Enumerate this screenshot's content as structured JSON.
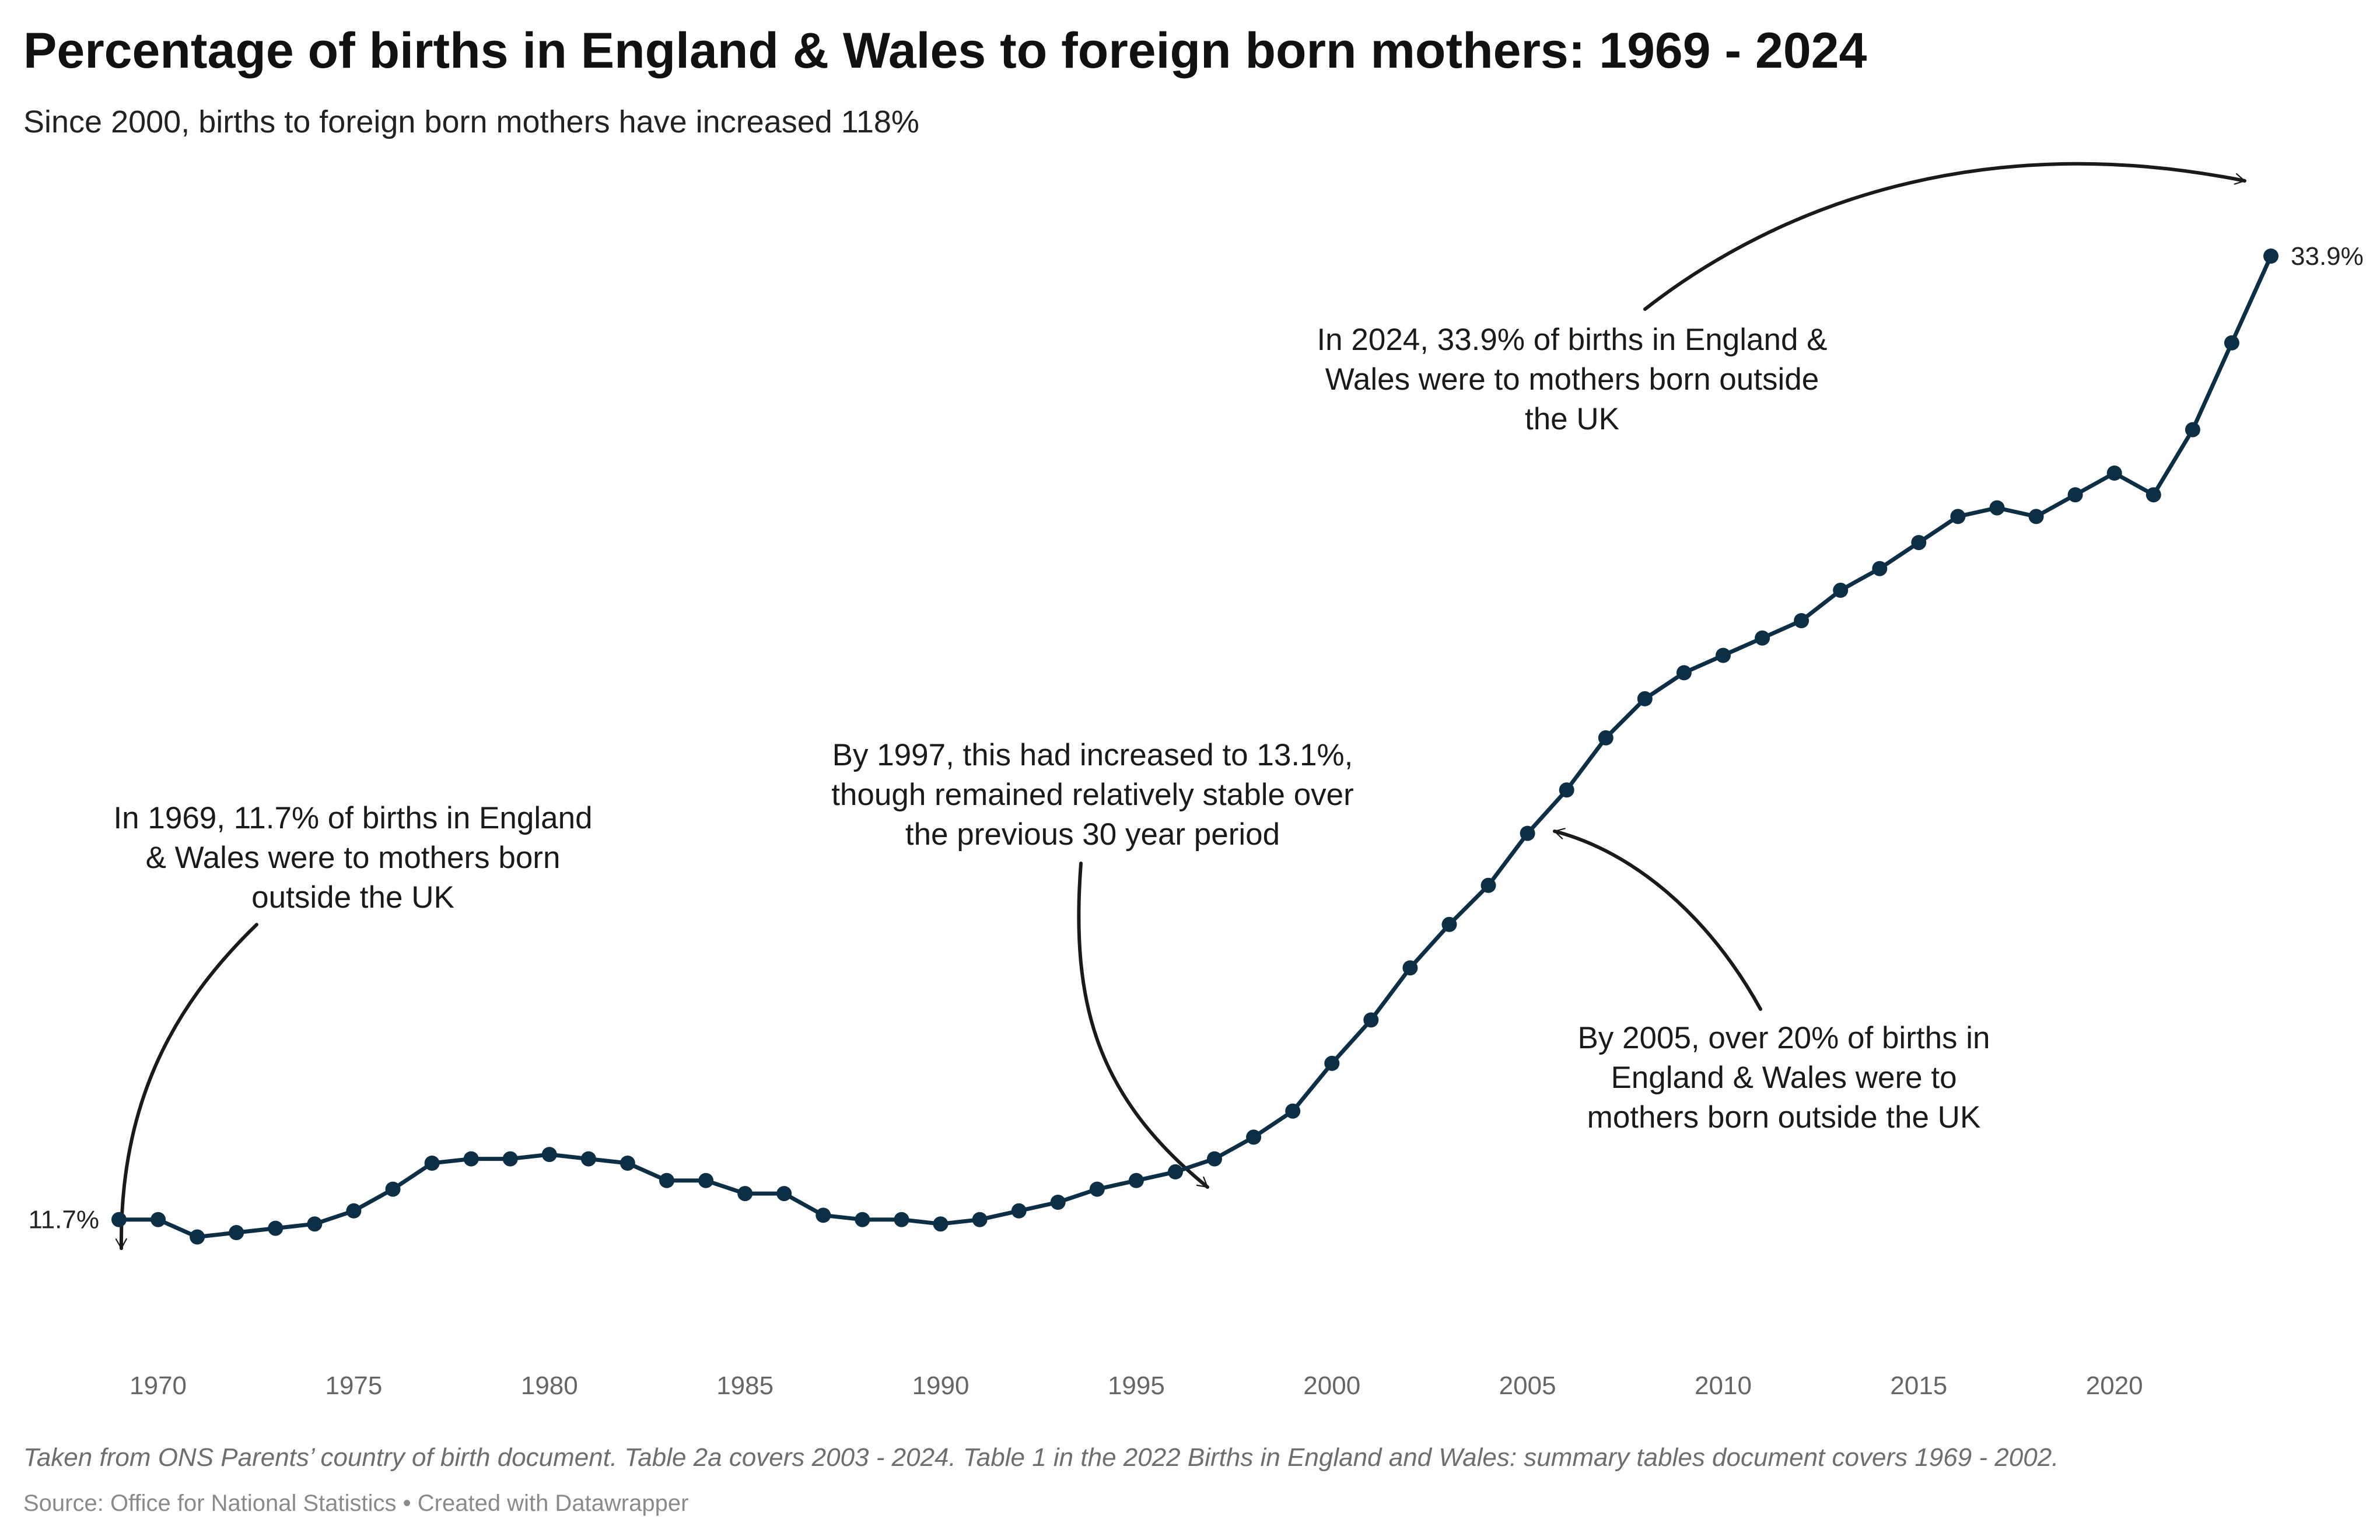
{
  "title": "Percentage of births in England & Wales to foreign born mothers: 1969 - 2024",
  "subtitle": "Since 2000, births to foreign born mothers have increased 118%",
  "notes": "Taken from ONS Parents’ country of birth document. Table 2a covers 2003 - 2024. Table 1 in the 2022 Births in England and Wales: summary tables document covers 1969 - 2002.",
  "source": "Source: Office for National Statistics • Created with Datawrapper",
  "colors": {
    "line": "#0d2f45",
    "annotation": "#1a1a1a",
    "tick": "#666666"
  },
  "chart_data": {
    "type": "line",
    "x": [
      1969,
      1970,
      1971,
      1972,
      1973,
      1974,
      1975,
      1976,
      1977,
      1978,
      1979,
      1980,
      1981,
      1982,
      1983,
      1984,
      1985,
      1986,
      1987,
      1988,
      1989,
      1990,
      1991,
      1992,
      1993,
      1994,
      1995,
      1996,
      1997,
      1998,
      1999,
      2000,
      2001,
      2002,
      2003,
      2004,
      2005,
      2006,
      2007,
      2008,
      2009,
      2010,
      2011,
      2012,
      2013,
      2014,
      2015,
      2016,
      2017,
      2018,
      2019,
      2020,
      2021,
      2022,
      2023,
      2024
    ],
    "series": [
      {
        "values": [
          11.7,
          11.7,
          11.3,
          11.4,
          11.5,
          11.6,
          11.9,
          12.4,
          13.0,
          13.1,
          13.1,
          13.2,
          13.1,
          13.0,
          12.6,
          12.6,
          12.3,
          12.3,
          11.8,
          11.7,
          11.7,
          11.6,
          11.7,
          11.9,
          12.1,
          12.4,
          12.6,
          12.8,
          13.1,
          13.6,
          14.2,
          15.3,
          16.3,
          17.5,
          18.5,
          19.4,
          20.6,
          21.6,
          22.8,
          23.7,
          24.3,
          24.7,
          25.1,
          25.5,
          26.2,
          26.7,
          27.3,
          27.9,
          28.1,
          27.9,
          28.4,
          28.9,
          28.4,
          29.9,
          31.9,
          33.9
        ]
      }
    ],
    "xticks": [
      "1970",
      "1975",
      "1980",
      "1985",
      "1990",
      "1995",
      "2000",
      "2005",
      "2010",
      "2015",
      "2020"
    ],
    "xlim": [
      1969,
      2024
    ],
    "ylim": [
      10.5,
      35.5
    ],
    "grid": false,
    "legend": "none",
    "end_labels": {
      "start": "11.7%",
      "end": "33.9%"
    },
    "annotations": [
      {
        "lines": [
          "In 1969, 11.7% of births in England",
          "& Wales were to mothers born",
          "outside the UK"
        ]
      },
      {
        "lines": [
          "By 1997, this had increased to 13.1%,",
          "though remained relatively stable over",
          "the previous 30 year period"
        ]
      },
      {
        "lines": [
          "In 2024, 33.9% of births in England &",
          "Wales were to mothers born outside",
          "the UK"
        ]
      },
      {
        "lines": [
          "By 2005, over 20% of births in",
          "England & Wales were to",
          "mothers born outside the UK"
        ]
      }
    ]
  }
}
